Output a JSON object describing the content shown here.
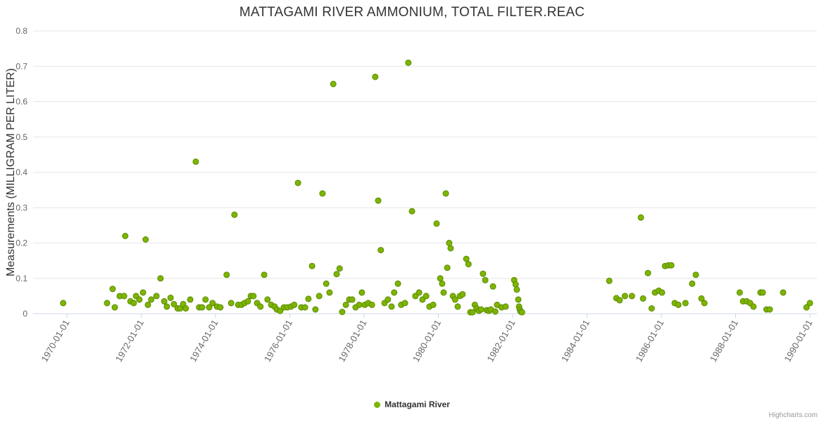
{
  "credits": {
    "label": "Highcharts.com"
  },
  "chart_data": {
    "type": "scatter",
    "title": "MATTAGAMI RIVER AMMONIUM, TOTAL FILTER.REAC",
    "xlabel": "",
    "ylabel": "Measurements (MILLIGRAM PER LITER)",
    "xlim": [
      1969.09,
      1990.19
    ],
    "ylim": [
      0,
      0.8
    ],
    "grid": "horizontal",
    "legend_position": "bottom-center",
    "marker_radius": 4,
    "colors": {
      "series": "#7db500",
      "series_stroke": "#5c8a00",
      "grid": "#e6e6e6",
      "axis_line": "#ccd6eb",
      "tick_text": "#666666",
      "title_text": "#333333",
      "credits_text": "#999999"
    },
    "yticks": [
      {
        "value": 0,
        "label": "0"
      },
      {
        "value": 0.1,
        "label": "0.1"
      },
      {
        "value": 0.2,
        "label": "0.2"
      },
      {
        "value": 0.3,
        "label": "0.3"
      },
      {
        "value": 0.4,
        "label": "0.4"
      },
      {
        "value": 0.5,
        "label": "0.5"
      },
      {
        "value": 0.6,
        "label": "0.6"
      },
      {
        "value": 0.7,
        "label": "0.7"
      },
      {
        "value": 0.8,
        "label": "0.8"
      }
    ],
    "xticks": [
      {
        "value": 1970,
        "label": "1970-01-01"
      },
      {
        "value": 1972,
        "label": "1972-01-01"
      },
      {
        "value": 1974,
        "label": "1974-01-01"
      },
      {
        "value": 1976,
        "label": "1976-01-01"
      },
      {
        "value": 1978,
        "label": "1978-01-01"
      },
      {
        "value": 1980,
        "label": "1980-01-01"
      },
      {
        "value": 1982,
        "label": "1982-01-01"
      },
      {
        "value": 1984,
        "label": "1984-01-01"
      },
      {
        "value": 1986,
        "label": "1986-01-01"
      },
      {
        "value": 1988,
        "label": "1988-01-01"
      },
      {
        "value": 1990,
        "label": "1990-01-01"
      }
    ],
    "series": [
      {
        "name": "Mattagami River",
        "points": [
          [
            1969.9,
            0.03
          ],
          [
            1971.08,
            0.03
          ],
          [
            1971.23,
            0.07
          ],
          [
            1971.29,
            0.018
          ],
          [
            1971.42,
            0.05
          ],
          [
            1971.54,
            0.05
          ],
          [
            1971.57,
            0.22
          ],
          [
            1971.71,
            0.035
          ],
          [
            1971.8,
            0.03
          ],
          [
            1971.86,
            0.05
          ],
          [
            1971.95,
            0.04
          ],
          [
            1972.05,
            0.06
          ],
          [
            1972.12,
            0.21
          ],
          [
            1972.18,
            0.025
          ],
          [
            1972.27,
            0.04
          ],
          [
            1972.41,
            0.05
          ],
          [
            1972.52,
            0.1
          ],
          [
            1972.62,
            0.035
          ],
          [
            1972.69,
            0.02
          ],
          [
            1972.79,
            0.045
          ],
          [
            1972.88,
            0.027
          ],
          [
            1972.98,
            0.015
          ],
          [
            1973.05,
            0.015
          ],
          [
            1973.13,
            0.027
          ],
          [
            1973.2,
            0.015
          ],
          [
            1973.32,
            0.04
          ],
          [
            1973.47,
            0.43
          ],
          [
            1973.56,
            0.018
          ],
          [
            1973.64,
            0.018
          ],
          [
            1973.73,
            0.04
          ],
          [
            1973.83,
            0.018
          ],
          [
            1973.92,
            0.03
          ],
          [
            1974.04,
            0.02
          ],
          [
            1974.13,
            0.018
          ],
          [
            1974.3,
            0.11
          ],
          [
            1974.42,
            0.03
          ],
          [
            1974.51,
            0.28
          ],
          [
            1974.61,
            0.025
          ],
          [
            1974.7,
            0.025
          ],
          [
            1974.78,
            0.03
          ],
          [
            1974.87,
            0.035
          ],
          [
            1974.95,
            0.05
          ],
          [
            1975.02,
            0.05
          ],
          [
            1975.12,
            0.03
          ],
          [
            1975.21,
            0.02
          ],
          [
            1975.31,
            0.11
          ],
          [
            1975.4,
            0.04
          ],
          [
            1975.5,
            0.025
          ],
          [
            1975.59,
            0.02
          ],
          [
            1975.65,
            0.012
          ],
          [
            1975.74,
            0.008
          ],
          [
            1975.84,
            0.018
          ],
          [
            1975.93,
            0.018
          ],
          [
            1976.03,
            0.02
          ],
          [
            1976.12,
            0.025
          ],
          [
            1976.22,
            0.37
          ],
          [
            1976.31,
            0.018
          ],
          [
            1976.41,
            0.018
          ],
          [
            1976.5,
            0.042
          ],
          [
            1976.6,
            0.135
          ],
          [
            1976.69,
            0.012
          ],
          [
            1976.79,
            0.05
          ],
          [
            1976.88,
            0.34
          ],
          [
            1976.98,
            0.085
          ],
          [
            1977.07,
            0.06
          ],
          [
            1977.17,
            0.65
          ],
          [
            1977.26,
            0.112
          ],
          [
            1977.34,
            0.128
          ],
          [
            1977.41,
            0.005
          ],
          [
            1977.51,
            0.025
          ],
          [
            1977.6,
            0.04
          ],
          [
            1977.68,
            0.04
          ],
          [
            1977.77,
            0.018
          ],
          [
            1977.87,
            0.025
          ],
          [
            1977.94,
            0.06
          ],
          [
            1978.02,
            0.025
          ],
          [
            1978.11,
            0.03
          ],
          [
            1978.21,
            0.025
          ],
          [
            1978.3,
            0.67
          ],
          [
            1978.38,
            0.32
          ],
          [
            1978.45,
            0.18
          ],
          [
            1978.55,
            0.03
          ],
          [
            1978.64,
            0.04
          ],
          [
            1978.74,
            0.02
          ],
          [
            1978.81,
            0.06
          ],
          [
            1978.91,
            0.085
          ],
          [
            1979.0,
            0.025
          ],
          [
            1979.1,
            0.03
          ],
          [
            1979.19,
            0.71
          ],
          [
            1979.29,
            0.29
          ],
          [
            1979.38,
            0.05
          ],
          [
            1979.48,
            0.06
          ],
          [
            1979.57,
            0.04
          ],
          [
            1979.67,
            0.05
          ],
          [
            1979.76,
            0.02
          ],
          [
            1979.86,
            0.025
          ],
          [
            1979.95,
            0.255
          ],
          [
            1980.05,
            0.1
          ],
          [
            1980.1,
            0.085
          ],
          [
            1980.14,
            0.06
          ],
          [
            1980.2,
            0.34
          ],
          [
            1980.24,
            0.13
          ],
          [
            1980.29,
            0.2
          ],
          [
            1980.33,
            0.185
          ],
          [
            1980.39,
            0.05
          ],
          [
            1980.45,
            0.04
          ],
          [
            1980.52,
            0.02
          ],
          [
            1980.58,
            0.05
          ],
          [
            1980.65,
            0.055
          ],
          [
            1980.75,
            0.155
          ],
          [
            1980.81,
            0.14
          ],
          [
            1980.86,
            0.004
          ],
          [
            1980.92,
            0.004
          ],
          [
            1980.98,
            0.025
          ],
          [
            1981.03,
            0.015
          ],
          [
            1981.09,
            0.008
          ],
          [
            1981.15,
            0.012
          ],
          [
            1981.2,
            0.113
          ],
          [
            1981.26,
            0.095
          ],
          [
            1981.3,
            0.01
          ],
          [
            1981.36,
            0.008
          ],
          [
            1981.41,
            0.012
          ],
          [
            1981.47,
            0.077
          ],
          [
            1981.53,
            0.006
          ],
          [
            1981.58,
            0.025
          ],
          [
            1981.7,
            0.018
          ],
          [
            1981.81,
            0.02
          ],
          [
            1982.04,
            0.095
          ],
          [
            1982.08,
            0.083
          ],
          [
            1982.11,
            0.068
          ],
          [
            1982.15,
            0.04
          ],
          [
            1982.17,
            0.02
          ],
          [
            1982.19,
            0.012
          ],
          [
            1982.21,
            0.006
          ],
          [
            1982.25,
            0.004
          ],
          [
            1984.6,
            0.093
          ],
          [
            1984.79,
            0.044
          ],
          [
            1984.88,
            0.038
          ],
          [
            1985.02,
            0.05
          ],
          [
            1985.21,
            0.05
          ],
          [
            1985.45,
            0.272
          ],
          [
            1985.51,
            0.043
          ],
          [
            1985.64,
            0.115
          ],
          [
            1985.74,
            0.015
          ],
          [
            1985.83,
            0.06
          ],
          [
            1985.93,
            0.065
          ],
          [
            1986.02,
            0.06
          ],
          [
            1986.1,
            0.135
          ],
          [
            1986.19,
            0.137
          ],
          [
            1986.27,
            0.137
          ],
          [
            1986.36,
            0.03
          ],
          [
            1986.46,
            0.025
          ],
          [
            1986.65,
            0.03
          ],
          [
            1986.83,
            0.085
          ],
          [
            1986.93,
            0.11
          ],
          [
            1987.08,
            0.043
          ],
          [
            1987.16,
            0.03
          ],
          [
            1988.11,
            0.06
          ],
          [
            1988.2,
            0.035
          ],
          [
            1988.3,
            0.035
          ],
          [
            1988.39,
            0.03
          ],
          [
            1988.48,
            0.02
          ],
          [
            1988.67,
            0.06
          ],
          [
            1988.73,
            0.06
          ],
          [
            1988.83,
            0.012
          ],
          [
            1988.92,
            0.012
          ],
          [
            1989.28,
            0.06
          ],
          [
            1989.91,
            0.018
          ],
          [
            1990.0,
            0.03
          ]
        ]
      }
    ]
  }
}
